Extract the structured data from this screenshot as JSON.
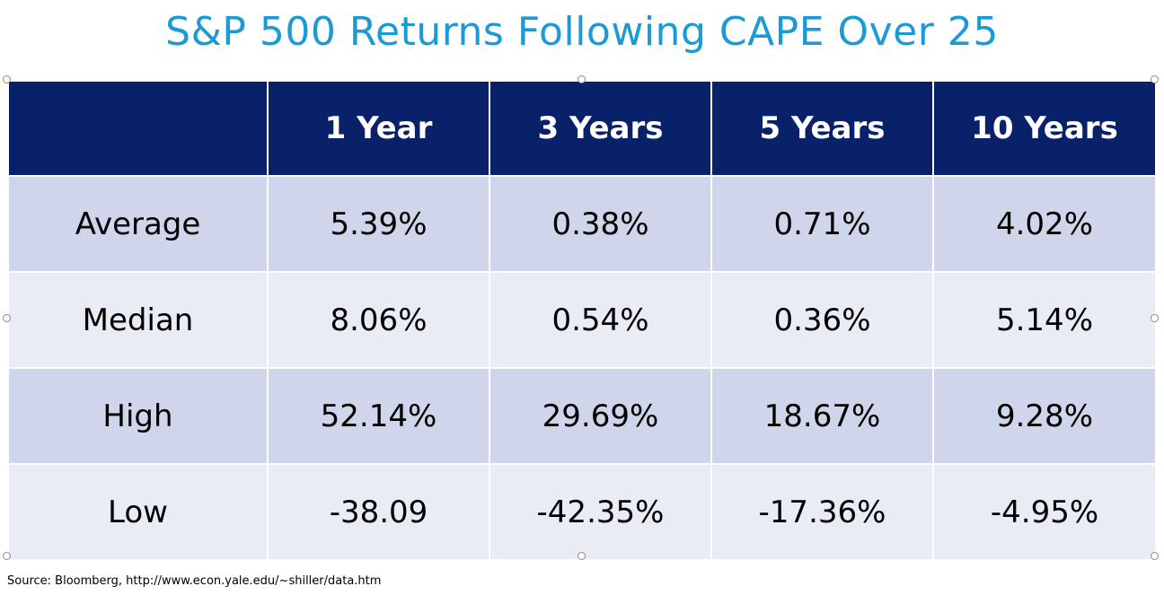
{
  "title": "S&P 500 Returns Following CAPE Over 25",
  "table": {
    "headers": [
      "",
      "1 Year",
      "3 Years",
      "5 Years",
      "10 Years"
    ],
    "rows": [
      {
        "label": "Average",
        "values": [
          "5.39%",
          "0.38%",
          "0.71%",
          "4.02%"
        ]
      },
      {
        "label": "Median",
        "values": [
          "8.06%",
          "0.54%",
          "0.36%",
          "5.14%"
        ]
      },
      {
        "label": "High",
        "values": [
          "52.14%",
          "29.69%",
          "18.67%",
          "9.28%"
        ]
      },
      {
        "label": "Low",
        "values": [
          "-38.09",
          "-42.35%",
          "-17.36%",
          "-4.95%"
        ]
      }
    ]
  },
  "source": "Source: Bloomberg, http://www.econ.yale.edu/~shiller/data.htm",
  "colors": {
    "title": "#1b9ad6",
    "header_bg": "#082168",
    "row_dark": "#cfd5ea",
    "row_light": "#e9ebf5"
  }
}
